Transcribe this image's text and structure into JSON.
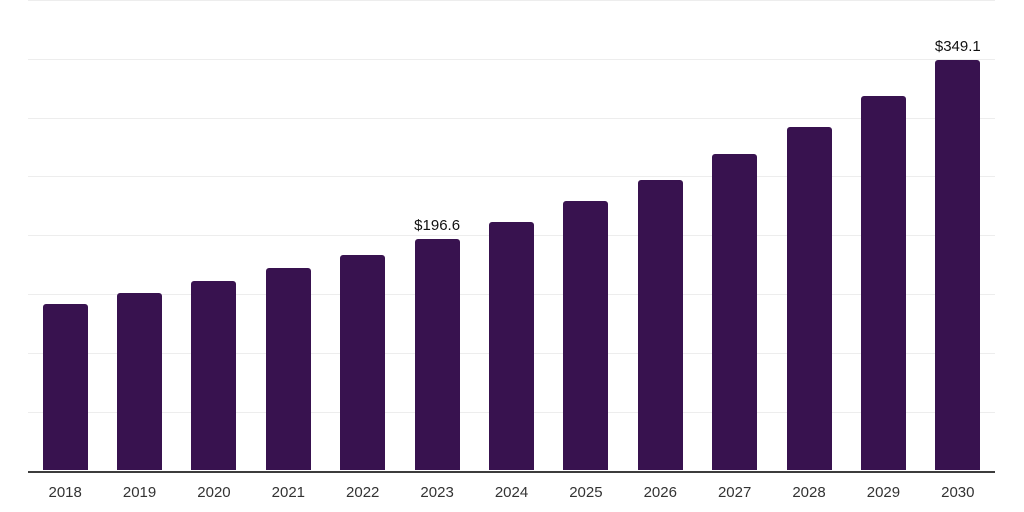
{
  "chart_data": {
    "type": "bar",
    "title": "",
    "xlabel": "",
    "ylabel": "",
    "categories": [
      "2018",
      "2019",
      "2020",
      "2021",
      "2022",
      "2023",
      "2024",
      "2025",
      "2026",
      "2027",
      "2028",
      "2029",
      "2030"
    ],
    "values": [
      141.3,
      150.6,
      160.9,
      171.9,
      183.0,
      196.6,
      211.1,
      228.9,
      246.8,
      268.9,
      291.9,
      318.3,
      349.1
    ],
    "data_labels": {
      "2023": "$196.6",
      "2030": "$349.1"
    },
    "ylim": [
      0,
      400
    ],
    "gridline_step": 50,
    "grid": true,
    "legend": false,
    "y_tick_labels_visible": false,
    "colors": {
      "bar": "#38124f",
      "gridline": "#ededed",
      "axis_line": "#3c3c3c",
      "tick_label": "#333333",
      "data_label": "#111111",
      "background": "#ffffff"
    }
  }
}
